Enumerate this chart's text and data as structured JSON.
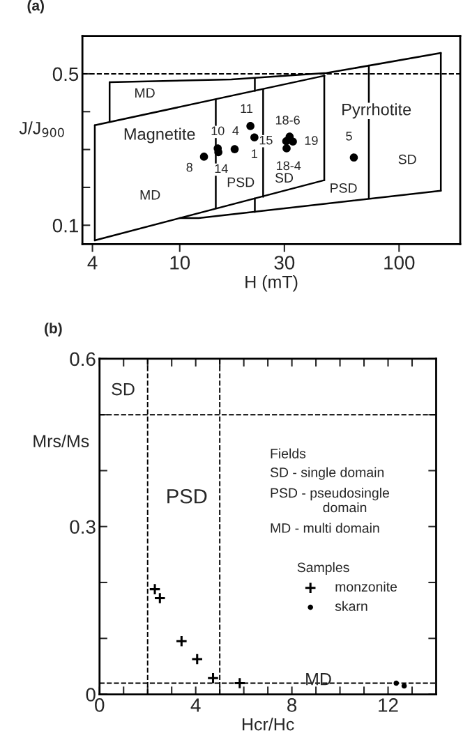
{
  "chart_data": [
    {
      "type": "scatter",
      "title": "(a)",
      "xlabel": "H (mT)",
      "ylabel": "J/J$_{900}$",
      "log": "x",
      "xlim": [
        3.6,
        190
      ],
      "xticks": [
        4,
        10,
        30,
        100
      ],
      "ylim": [
        0.05,
        0.6
      ],
      "yticks": [
        0.1,
        {
          "value": 0.2,
          "label": null
        },
        {
          "value": 0.3,
          "label": null
        },
        {
          "value": 0.4,
          "label": null
        },
        0.5
      ],
      "grid": false,
      "legend": false,
      "series": [
        {
          "color": "#000000",
          "marker": "circle",
          "x": [
            21.0,
            14.9,
            17.8,
            21.9,
            12.9,
            15.0,
            31.7,
            30.6,
            32.8,
            30.7,
            62.2
          ],
          "values": [
            0.362,
            0.303,
            0.301,
            0.332,
            0.281,
            0.293,
            0.334,
            0.322,
            0.321,
            0.303,
            0.279
          ]
        },
        {
          "type": "line",
          "color": "#000000",
          "marker": "none",
          "line_style": "solid",
          "x": [
            4.1,
            45.7
          ],
          "values": [
            0.364,
            0.495
          ]
        },
        {
          "type": "line",
          "color": "#000000",
          "marker": "none",
          "line_style": "solid",
          "x": [
            4.1,
            45.6
          ],
          "values": [
            0.06,
            0.219
          ]
        },
        {
          "type": "line",
          "color": "#000000",
          "marker": "none",
          "line_style": "solid",
          "x": [
            4.1,
            4.1
          ],
          "values": [
            0.06,
            0.364
          ]
        },
        {
          "type": "line",
          "color": "#000000",
          "marker": "none",
          "line_style": "solid",
          "x": [
            45.6,
            45.6
          ],
          "values": [
            0.219,
            0.495
          ]
        },
        {
          "type": "line",
          "color": "#000000",
          "marker": "none",
          "line_style": "solid",
          "x": [
            14.6,
            14.6
          ],
          "values": [
            0.146,
            0.432
          ]
        },
        {
          "type": "line",
          "color": "#000000",
          "marker": "none",
          "line_style": "solid",
          "x": [
            24.0,
            24.0
          ],
          "values": [
            0.175,
            0.459
          ]
        },
        {
          "type": "line",
          "color": "#000000",
          "marker": "none",
          "line_style": "solid",
          "x": [
            4.79,
            17.2,
            46.7,
            155
          ],
          "values": [
            0.478,
            0.485,
            0.502,
            0.555
          ]
        },
        {
          "type": "line",
          "color": "#000000",
          "marker": "none",
          "line_style": "solid",
          "x": [
            10.0,
            12.2,
            155
          ],
          "values": [
            0.119,
            0.119,
            0.191
          ]
        },
        {
          "type": "line",
          "color": "#000000",
          "marker": "none",
          "line_style": "solid",
          "x": [
            4.79,
            4.79
          ],
          "values": [
            0.374,
            0.478
          ]
        },
        {
          "type": "line",
          "color": "#000000",
          "marker": "none",
          "line_style": "solid",
          "x": [
            155,
            155
          ],
          "values": [
            0.191,
            0.555
          ]
        },
        {
          "type": "line",
          "color": "#000000",
          "marker": "none",
          "line_style": "solid",
          "x": [
            22.0,
            22.0
          ],
          "values": [
            0.455,
            0.487
          ]
        },
        {
          "type": "line",
          "color": "#000000",
          "marker": "none",
          "line_style": "solid",
          "x": [
            22.0,
            22.0
          ],
          "values": [
            0.135,
            0.171
          ]
        },
        {
          "type": "line",
          "color": "#000000",
          "marker": "none",
          "line_style": "solid",
          "x": [
            72.8,
            72.8
          ],
          "values": [
            0.171,
            0.522
          ]
        }
      ],
      "ref_lines": [
        {
          "axis": "y",
          "value": 0.5,
          "line_style": "dashed",
          "color": "#000000"
        }
      ],
      "annotations": [
        {
          "text": "11",
          "x": 21.0,
          "y": 0.362
        },
        {
          "text": "10",
          "x": 14.9,
          "y": 0.303
        },
        {
          "text": "4",
          "x": 17.8,
          "y": 0.301
        },
        {
          "text": "1",
          "x": 21.9,
          "y": 0.332
        },
        {
          "text": "8",
          "x": 12.9,
          "y": 0.281
        },
        {
          "text": "14",
          "x": 15.0,
          "y": 0.293
        },
        {
          "text": "18-6",
          "x": 31.7,
          "y": 0.334
        },
        {
          "text": "15",
          "x": 30.6,
          "y": 0.322
        },
        {
          "text": "19",
          "x": 32.8,
          "y": 0.321
        },
        {
          "text": "18-4",
          "x": 30.7,
          "y": 0.303
        },
        {
          "text": "5",
          "x": 62.2,
          "y": 0.279
        },
        "MD",
        "Magnetite",
        "MD",
        "PSD",
        "SD",
        "Pyrrhotite",
        "PSD",
        "SD"
      ]
    },
    {
      "type": "scatter",
      "title": "(b)",
      "xlabel": "Hcr/Hc",
      "ylabel": "Mrs/Ms",
      "xlim": [
        0,
        14
      ],
      "xticks": [
        0,
        {
          "value": 1,
          "label": null
        },
        {
          "value": 2,
          "label": null
        },
        {
          "value": 3,
          "label": null
        },
        4,
        {
          "value": 5,
          "label": null
        },
        {
          "value": 6,
          "label": null
        },
        {
          "value": 7,
          "label": null
        },
        8,
        {
          "value": 9,
          "label": null
        },
        {
          "value": 10,
          "label": null
        },
        {
          "value": 11,
          "label": null
        },
        12,
        {
          "value": 13,
          "label": null
        }
      ],
      "ylim": [
        0,
        0.6
      ],
      "yticks": [
        0,
        {
          "value": 0.1,
          "label": null
        },
        {
          "value": 0.2,
          "label": null
        },
        0.3,
        {
          "value": 0.4,
          "label": null
        },
        {
          "value": 0.5,
          "label": null
        },
        0.6
      ],
      "grid": false,
      "legend": "right",
      "legend_title": "Samples",
      "series": [
        {
          "name": "monzonite",
          "color": "#000000",
          "marker": "cross",
          "x": [
            2.3,
            2.51,
            3.41,
            4.06,
            4.72,
            5.83
          ],
          "values": [
            0.188,
            0.172,
            0.095,
            0.063,
            0.029,
            0.02
          ]
        },
        {
          "name": "skarn",
          "color": "#000000",
          "marker": "circle",
          "x": [
            12.34,
            12.67
          ],
          "values": [
            0.02,
            0.015
          ]
        }
      ],
      "ref_lines": [
        {
          "axis": "x",
          "value": 2,
          "line_style": "dashed",
          "color": "#000000"
        },
        {
          "axis": "x",
          "value": 5,
          "line_style": "dashed",
          "color": "#000000"
        },
        {
          "axis": "y",
          "value": 0.5,
          "line_style": "dashed",
          "color": "#000000"
        },
        {
          "axis": "y",
          "value": 0.02,
          "line_style": "dashed",
          "color": "#000000"
        }
      ],
      "annotations": [
        "SD",
        "PSD",
        "MD",
        "Fields",
        "SD - single domain",
        "PSD - pseudosingle\n              domain",
        "MD - multi domain"
      ]
    }
  ]
}
